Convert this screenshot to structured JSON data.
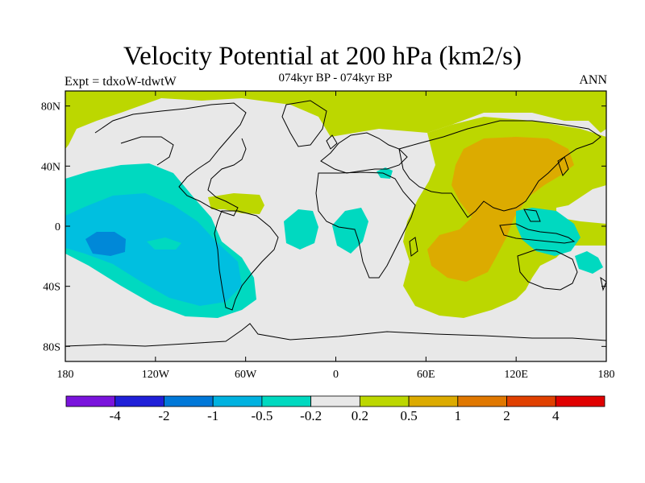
{
  "title": "Velocity Potential at 200 hPa (km2/s)",
  "subtitle": "074kyr BP - 074kyr BP",
  "left_label": "Expt = tdxoW-tdwtW",
  "right_label": "ANN",
  "map": {
    "projection": "cylindrical equidistant",
    "lon_range": [
      -180,
      180
    ],
    "lat_range": [
      -90,
      90
    ],
    "x_ticks": [
      {
        "value": -180,
        "label": "180"
      },
      {
        "value": -120,
        "label": "120W"
      },
      {
        "value": -60,
        "label": "60W"
      },
      {
        "value": 0,
        "label": "0"
      },
      {
        "value": 60,
        "label": "60E"
      },
      {
        "value": 120,
        "label": "120E"
      },
      {
        "value": 180,
        "label": "180"
      }
    ],
    "y_ticks": [
      {
        "value": 80,
        "label": "80N"
      },
      {
        "value": 40,
        "label": "40N"
      },
      {
        "value": 0,
        "label": "0"
      },
      {
        "value": -40,
        "label": "40S"
      },
      {
        "value": -80,
        "label": "80S"
      }
    ],
    "fields": [
      {
        "name": "northern-high-lat-positive",
        "level": "0.2 to 0.5",
        "color": "#bcd700"
      },
      {
        "name": "pacific-negative-outer",
        "level": "-0.5 to -0.2",
        "color": "#00d9c0"
      },
      {
        "name": "pacific-negative-mid",
        "level": "-1 to -0.5",
        "color": "#00bfe0"
      },
      {
        "name": "pacific-negative-core",
        "level": "-2 to -1",
        "color": "#0088d8"
      },
      {
        "name": "caribbean-positive",
        "level": "0.2 to 0.5",
        "color": "#bcd700"
      },
      {
        "name": "atlantic-negative-left",
        "level": "-0.5 to -0.2",
        "color": "#00d9c0"
      },
      {
        "name": "atlantic-negative-right",
        "level": "-0.5 to -0.2",
        "color": "#00d9c0"
      },
      {
        "name": "mediterranean-negative",
        "level": "-0.5 to -0.2",
        "color": "#00d9c0"
      },
      {
        "name": "indian-ocean-asia-positive",
        "level": "0.2 to 0.5",
        "color": "#bcd700"
      },
      {
        "name": "asia-positive-core",
        "level": "0.5 to 1",
        "color": "#dcab00"
      },
      {
        "name": "maritime-continent-negative",
        "level": "-0.5 to -0.2",
        "color": "#00d9c0"
      },
      {
        "name": "australia-east-negative",
        "level": "-0.5 to -0.2",
        "color": "#00d9c0"
      }
    ]
  },
  "colorbar": {
    "colors": [
      "#7a14dc",
      "#2020d8",
      "#0078d8",
      "#00b2e0",
      "#00d9c0",
      "#e8e8e8",
      "#bcd700",
      "#dcab00",
      "#e07800",
      "#e04000",
      "#e00000"
    ],
    "labels": [
      "-4",
      "-2",
      "-1",
      "-0.5",
      "-0.2",
      "0.2",
      "0.5",
      "1",
      "2",
      "4"
    ]
  }
}
